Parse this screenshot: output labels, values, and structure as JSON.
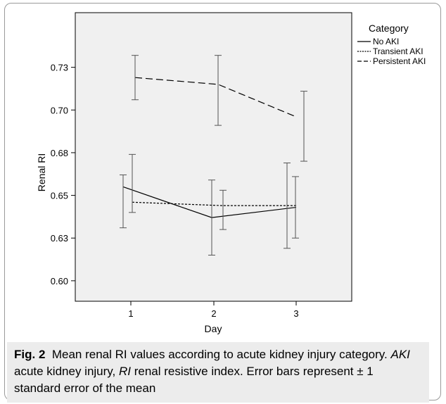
{
  "chart_data": {
    "type": "line",
    "xlabel": "Day",
    "ylabel": "Renal RI",
    "x": [
      1,
      2,
      3
    ],
    "x_tick_labels": [
      "1",
      "2",
      "3"
    ],
    "ylim": [
      0.588,
      0.757
    ],
    "y_ticks": [
      0.6,
      0.625,
      0.65,
      0.675,
      0.7,
      0.725
    ],
    "y_tick_labels": [
      "0.60",
      "0.63",
      "0.65",
      "0.68",
      "0.70",
      "0.73"
    ],
    "grid": false,
    "legend_title": "Category",
    "legend_placement": "top-right",
    "series": [
      {
        "name": "No AKI",
        "style": "solid",
        "values": [
          0.655,
          0.637,
          0.643
        ],
        "error_low": [
          0.631,
          0.615,
          0.619
        ],
        "error_high": [
          0.662,
          0.659,
          0.669
        ]
      },
      {
        "name": "Transient AKI",
        "style": "dotted",
        "values": [
          0.646,
          0.644,
          0.644
        ],
        "error_low": [
          0.64,
          0.63,
          0.625
        ],
        "error_high": [
          0.674,
          0.653,
          0.661
        ]
      },
      {
        "name": "Persistent AKI",
        "style": "dashed",
        "values": [
          0.719,
          0.715,
          0.696
        ],
        "error_low": [
          0.706,
          0.691,
          0.67
        ],
        "error_high": [
          0.732,
          0.732,
          0.711
        ]
      }
    ]
  },
  "caption": {
    "label": "Fig. 2",
    "text": "Mean renal RI values according to acute kidney injury category.",
    "abbr1": "AKI",
    "abbr1_def": "acute kidney injury,",
    "abbr2": "RI",
    "abbr2_def": "renal resistive index. Error bars represent ± 1 standard error of the mean"
  }
}
